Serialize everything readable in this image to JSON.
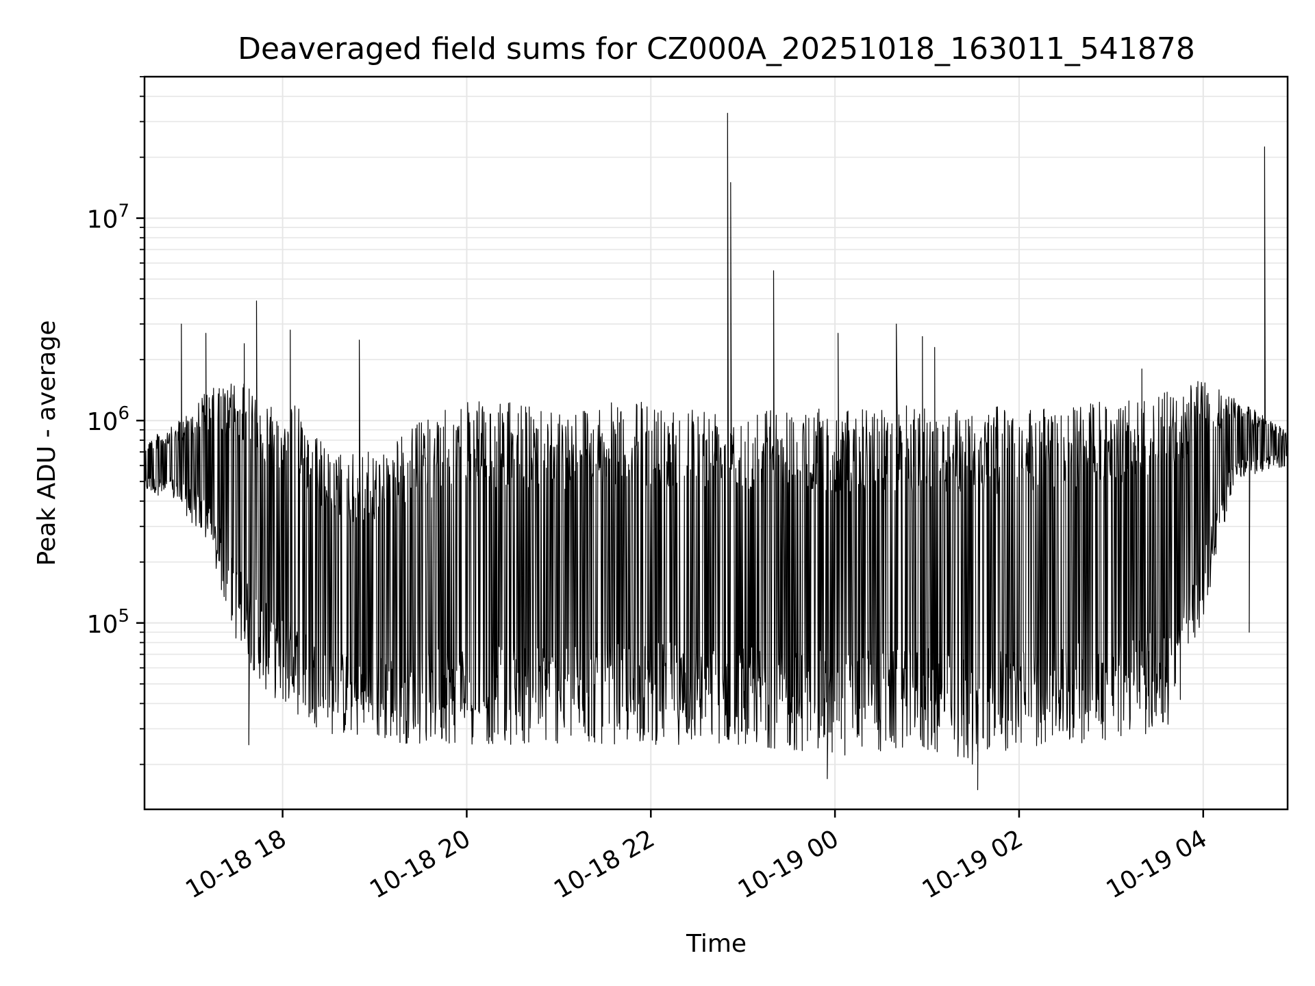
{
  "chart_data": {
    "type": "line",
    "title": "Deaveraged field sums for CZ000A_20251018_163011_541878",
    "xlabel": "Time",
    "ylabel": "Peak ADU - average",
    "x_type": "datetime",
    "y_scale": "log",
    "grid": true,
    "xlim": [
      "2025-10-18T16:30",
      "2025-10-19T04:55"
    ],
    "ylim": [
      12000,
      50000000
    ],
    "x_ticks": [
      {
        "value": "2025-10-18T18:00",
        "label": "10-18 18"
      },
      {
        "value": "2025-10-18T20:00",
        "label": "10-18 20"
      },
      {
        "value": "2025-10-18T22:00",
        "label": "10-18 22"
      },
      {
        "value": "2025-10-19T00:00",
        "label": "10-19 00"
      },
      {
        "value": "2025-10-19T02:00",
        "label": "10-19 02"
      },
      {
        "value": "2025-10-19T04:00",
        "label": "10-19 04"
      }
    ],
    "y_ticks": [
      {
        "value": 100000,
        "base": "10",
        "exp": "5"
      },
      {
        "value": 1000000,
        "base": "10",
        "exp": "6"
      },
      {
        "value": 10000000,
        "base": "10",
        "exp": "7"
      }
    ],
    "line_color": "#000000",
    "envelope": [
      {
        "t": "2025-10-18T16:30",
        "low": 450000,
        "high": 800000
      },
      {
        "t": "2025-10-18T16:50",
        "low": 400000,
        "high": 950000
      },
      {
        "t": "2025-10-18T17:10",
        "low": 250000,
        "high": 1400000
      },
      {
        "t": "2025-10-18T17:30",
        "low": 80000,
        "high": 1600000
      },
      {
        "t": "2025-10-18T17:50",
        "low": 45000,
        "high": 1300000
      },
      {
        "t": "2025-10-18T18:10",
        "low": 35000,
        "high": 1200000
      },
      {
        "t": "2025-10-18T18:30",
        "low": 28000,
        "high": 700000
      },
      {
        "t": "2025-10-18T19:00",
        "low": 26000,
        "high": 700000
      },
      {
        "t": "2025-10-18T19:30",
        "low": 25000,
        "high": 1000000
      },
      {
        "t": "2025-10-18T20:00",
        "low": 25000,
        "high": 1250000
      },
      {
        "t": "2025-10-18T21:00",
        "low": 25000,
        "high": 1200000
      },
      {
        "t": "2025-10-18T22:00",
        "low": 25000,
        "high": 1250000
      },
      {
        "t": "2025-10-18T23:00",
        "low": 25000,
        "high": 1200000
      },
      {
        "t": "2025-10-19T00:00",
        "low": 22000,
        "high": 1150000
      },
      {
        "t": "2025-10-19T01:00",
        "low": 23000,
        "high": 1200000
      },
      {
        "t": "2025-10-19T01:30",
        "low": 20000,
        "high": 1200000
      },
      {
        "t": "2025-10-19T02:00",
        "low": 24000,
        "high": 1150000
      },
      {
        "t": "2025-10-19T03:00",
        "low": 26000,
        "high": 1250000
      },
      {
        "t": "2025-10-19T03:40",
        "low": 30000,
        "high": 1400000
      },
      {
        "t": "2025-10-19T04:00",
        "low": 100000,
        "high": 1600000
      },
      {
        "t": "2025-10-19T04:20",
        "low": 500000,
        "high": 1300000
      },
      {
        "t": "2025-10-19T04:55",
        "low": 600000,
        "high": 900000
      }
    ],
    "spikes": [
      {
        "t": "2025-10-18T16:54",
        "value": 3000000
      },
      {
        "t": "2025-10-18T17:10",
        "value": 2700000
      },
      {
        "t": "2025-10-18T17:35",
        "value": 2400000
      },
      {
        "t": "2025-10-18T17:38",
        "value": 25000,
        "low": true
      },
      {
        "t": "2025-10-18T17:43",
        "value": 3900000
      },
      {
        "t": "2025-10-18T18:05",
        "value": 2800000
      },
      {
        "t": "2025-10-18T18:50",
        "value": 2500000
      },
      {
        "t": "2025-10-18T22:50",
        "value": 33000000
      },
      {
        "t": "2025-10-18T22:52",
        "value": 15000000
      },
      {
        "t": "2025-10-18T23:20",
        "value": 5500000
      },
      {
        "t": "2025-10-18T23:55",
        "value": 17000,
        "low": true
      },
      {
        "t": "2025-10-19T00:02",
        "value": 2700000
      },
      {
        "t": "2025-10-19T00:40",
        "value": 3000000
      },
      {
        "t": "2025-10-19T00:57",
        "value": 2600000
      },
      {
        "t": "2025-10-19T01:05",
        "value": 2300000
      },
      {
        "t": "2025-10-19T01:33",
        "value": 15000,
        "low": true
      },
      {
        "t": "2025-10-19T03:20",
        "value": 1800000
      },
      {
        "t": "2025-10-19T04:30",
        "value": 90000,
        "low": true
      },
      {
        "t": "2025-10-19T04:40",
        "value": 22500000
      }
    ]
  }
}
